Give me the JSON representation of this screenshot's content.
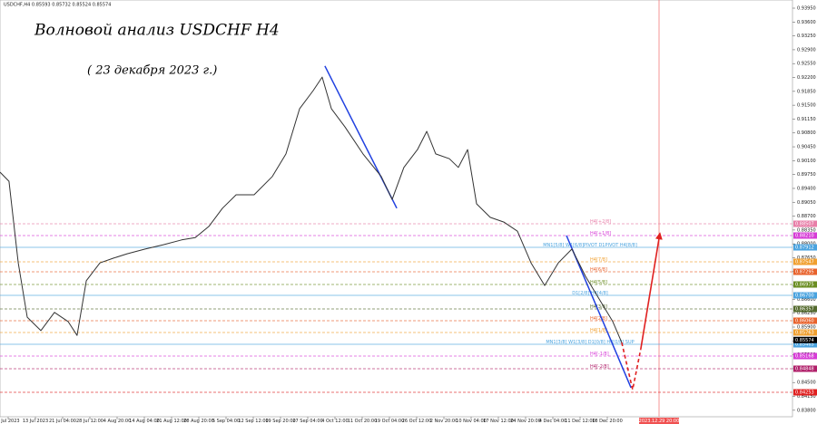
{
  "chart_data": {
    "type": "line",
    "header": "USDCHF,H4  0.85593 0.85732 0.85524 0.85574",
    "title": "Волновой анализ USDCHF H4",
    "subtitle": "( 23 декабря 2023 г.)",
    "xlim": [
      -0.3,
      28.8
    ],
    "xticks": [
      {
        "value": 0,
        "label": "6 Jul 2023"
      },
      {
        "value": 1,
        "label": "13 Jul 2023"
      },
      {
        "value": 2,
        "label": "21 Jul 04:00"
      },
      {
        "value": 3,
        "label": "28 Jul 12:00"
      },
      {
        "value": 4,
        "label": "4 Aug 20:00"
      },
      {
        "value": 5,
        "label": "14 Aug 04:00"
      },
      {
        "value": 6,
        "label": "21 Aug 12:00"
      },
      {
        "value": 7,
        "label": "28 Aug 20:00"
      },
      {
        "value": 8,
        "label": "5 Sep 04:00"
      },
      {
        "value": 9,
        "label": "12 Sep 12:00"
      },
      {
        "value": 10,
        "label": "19 Sep 20:00"
      },
      {
        "value": 11,
        "label": "27 Sep 04:00"
      },
      {
        "value": 12,
        "label": "4 Oct 12:00"
      },
      {
        "value": 13,
        "label": "11 Oct 20:00"
      },
      {
        "value": 14,
        "label": "19 Oct 04:00"
      },
      {
        "value": 15,
        "label": "26 Oct 12:00"
      },
      {
        "value": 16,
        "label": "2 Nov 20:00"
      },
      {
        "value": 17,
        "label": "10 Nov 04:00"
      },
      {
        "value": 18,
        "label": "17 Nov 12:00"
      },
      {
        "value": 19,
        "label": "24 Nov 20:00"
      },
      {
        "value": 20,
        "label": "4 Dec 04:00"
      },
      {
        "value": 21,
        "label": "11 Dec 12:00"
      },
      {
        "value": 22,
        "label": "18 Dec 20:00"
      }
    ],
    "marker_tick": {
      "value": 23.9,
      "label": "2023.12.29 20:00",
      "color": "#f05050"
    },
    "ylim": [
      0.83636,
      0.94156
    ],
    "yticks": [
      {
        "value": 0.9395,
        "label": "0.93950"
      },
      {
        "value": 0.936,
        "label": "0.93600"
      },
      {
        "value": 0.9325,
        "label": "0.93250"
      },
      {
        "value": 0.929,
        "label": "0.92900"
      },
      {
        "value": 0.9255,
        "label": "0.92550"
      },
      {
        "value": 0.922,
        "label": "0.92200"
      },
      {
        "value": 0.9185,
        "label": "0.91850"
      },
      {
        "value": 0.915,
        "label": "0.91500"
      },
      {
        "value": 0.9115,
        "label": "0.91150"
      },
      {
        "value": 0.908,
        "label": "0.90800"
      },
      {
        "value": 0.9045,
        "label": "0.90450"
      },
      {
        "value": 0.901,
        "label": "0.90100"
      },
      {
        "value": 0.8975,
        "label": "0.89750"
      },
      {
        "value": 0.894,
        "label": "0.89400"
      },
      {
        "value": 0.8905,
        "label": "0.89050"
      },
      {
        "value": 0.887,
        "label": "0.88700"
      },
      {
        "value": 0.8835,
        "label": "0.88350"
      },
      {
        "value": 0.88,
        "label": "0.88000"
      },
      {
        "value": 0.8765,
        "label": "0.87650"
      },
      {
        "value": 0.873,
        "label": "0.87300"
      },
      {
        "value": 0.8695,
        "label": "0.86950"
      },
      {
        "value": 0.866,
        "label": "0.86600"
      },
      {
        "value": 0.8625,
        "label": "0.86250"
      },
      {
        "value": 0.859,
        "label": "0.85900"
      },
      {
        "value": 0.8555,
        "label": "0.85550"
      },
      {
        "value": 0.852,
        "label": "0.85200"
      },
      {
        "value": 0.8485,
        "label": "0.84850"
      },
      {
        "value": 0.845,
        "label": "0.84500"
      },
      {
        "value": 0.8415,
        "label": "0.84150"
      },
      {
        "value": 0.838,
        "label": "0.83800"
      }
    ],
    "series": [
      {
        "color": "#333333",
        "style": "solid",
        "x": [
          -0.3,
          0.03,
          0.37,
          0.7,
          1.2,
          1.7,
          2.2,
          2.53,
          2.87,
          3.37,
          3.87,
          4.37,
          5.03,
          5.7,
          6.37,
          6.87,
          7.37,
          7.87,
          8.37,
          9.03,
          9.7,
          10.2,
          10.7,
          11.2,
          11.53,
          11.87,
          12.37,
          13.03,
          13.7,
          14.1,
          14.53,
          15.03,
          15.37,
          15.7,
          16.2,
          16.53,
          16.87,
          17.2,
          17.7,
          18.2,
          18.7,
          19.2,
          19.7,
          20.2,
          20.7,
          21.2,
          21.7,
          22.2,
          22.53
        ],
        "values": [
          0.8981,
          0.8958,
          0.8752,
          0.8615,
          0.8581,
          0.8627,
          0.8604,
          0.8569,
          0.8707,
          0.8752,
          0.8764,
          0.8775,
          0.8787,
          0.8798,
          0.881,
          0.8816,
          0.8844,
          0.889,
          0.8924,
          0.8924,
          0.897,
          0.9027,
          0.9141,
          0.9187,
          0.9221,
          0.9141,
          0.9095,
          0.9027,
          0.897,
          0.8912,
          0.8993,
          0.9038,
          0.9084,
          0.9027,
          0.9015,
          0.8993,
          0.9038,
          0.8901,
          0.8867,
          0.8855,
          0.8832,
          0.8752,
          0.8695,
          0.8752,
          0.8787,
          0.8718,
          0.8661,
          0.8604,
          0.8551
        ]
      },
      {
        "color": "#e02020",
        "style": "dashed",
        "x": [
          22.53,
          22.93,
          23.23
        ],
        "values": [
          0.8551,
          0.8432,
          0.8535
        ]
      },
      {
        "color": "#e02020",
        "style": "arrow",
        "x": [
          23.23,
          23.93
        ],
        "values": [
          0.8535,
          0.8826
        ]
      }
    ],
    "trend_lines": [
      {
        "color": "#2040e0",
        "x": [
          11.63,
          14.27
        ],
        "values": [
          0.9249,
          0.889
        ]
      },
      {
        "color": "#2040e0",
        "x": [
          20.5,
          22.87
        ],
        "values": [
          0.8821,
          0.8437
        ]
      }
    ],
    "levels": {
      "names": [
        "H4[+2/8]",
        "H4[+1/8]",
        "MN1[5/8] W1[6/8]PIVOT D1PIVOT H4[8/8]",
        "H4[7/8]",
        "H4[6/8]",
        "H4[5/8]",
        "D1[2/8] H4[4/8]",
        "H4[3/8]",
        "H4[2/8]",
        "H4[1/8]",
        "MN1[3/8] W1[3/8] D1[0/8] H4[0/8] SUP",
        "H4[-1/8]",
        "H4[-2/8]",
        null
      ],
      "values": [
        0.88507,
        0.8821,
        0.87912,
        0.87547,
        0.87295,
        0.86975,
        0.867,
        0.86357,
        0.8606,
        0.85763,
        0.85465,
        0.85168,
        0.84848,
        0.84253
      ],
      "value_labels": [
        "0.88507",
        "0.88210",
        "0.87912",
        "0.87547",
        "0.87295",
        "0.86975",
        "0.86700",
        "0.86357",
        "0.86060",
        "0.85763",
        "0.85465",
        "0.85168",
        "0.84848",
        "0.84253"
      ],
      "colors": [
        "#e87ea8",
        "#d63cd6",
        "#4aa3df",
        "#f0a030",
        "#e8622c",
        "#6b8e23",
        "#4aa3df",
        "#556b2f",
        "#e8622c",
        "#f0a030",
        "#4aa3df",
        "#d63cd6",
        "#b0206a",
        "#e02020"
      ]
    },
    "current_price": {
      "value": 0.85574,
      "label": "0.85574"
    }
  }
}
